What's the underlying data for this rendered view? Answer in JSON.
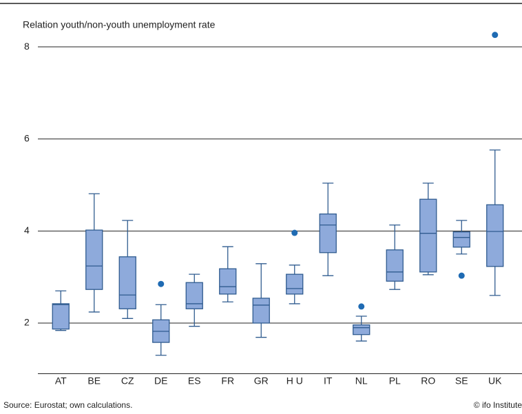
{
  "chart_data": {
    "type": "box",
    "y_label": "Relation youth/non-youth unemployment rate",
    "source": "Source: Eurostat; own calculations.",
    "copyright": "© ifo Institute",
    "categories": [
      "AT",
      "BE",
      "CZ",
      "DE",
      "ES",
      "FR",
      "GR",
      "H U",
      "IT",
      "NL",
      "PL",
      "RO",
      "SE",
      "UK"
    ],
    "whisker_low": [
      1.84,
      2.24,
      2.1,
      1.3,
      1.93,
      2.46,
      1.69,
      2.42,
      3.03,
      1.61,
      2.73,
      3.05,
      3.5,
      2.6
    ],
    "q1": [
      1.87,
      2.73,
      2.31,
      1.58,
      2.31,
      2.63,
      2.0,
      2.63,
      3.53,
      1.75,
      2.91,
      3.11,
      3.65,
      3.23
    ],
    "median": [
      2.4,
      3.24,
      2.61,
      1.82,
      2.42,
      2.79,
      2.39,
      2.75,
      4.13,
      1.9,
      3.11,
      3.95,
      3.86,
      3.99
    ],
    "q3": [
      2.42,
      4.02,
      3.44,
      2.07,
      2.88,
      3.18,
      2.54,
      3.06,
      4.37,
      1.96,
      3.59,
      4.69,
      3.98,
      4.57
    ],
    "whisker_high": [
      2.7,
      4.81,
      4.23,
      2.4,
      3.06,
      3.66,
      3.29,
      3.26,
      5.04,
      2.15,
      4.13,
      5.04,
      4.23,
      5.76
    ],
    "outliers": [
      null,
      null,
      null,
      2.85,
      null,
      null,
      null,
      3.96,
      null,
      2.36,
      null,
      null,
      3.03,
      8.26
    ],
    "box_color": "#8eaadb",
    "line_color": "#2f5b8f",
    "outlier_color": "#1f6bb3",
    "ylim": [
      0.9,
      8.3
    ],
    "yticks": [
      2,
      4,
      6,
      8
    ],
    "grid": true
  }
}
